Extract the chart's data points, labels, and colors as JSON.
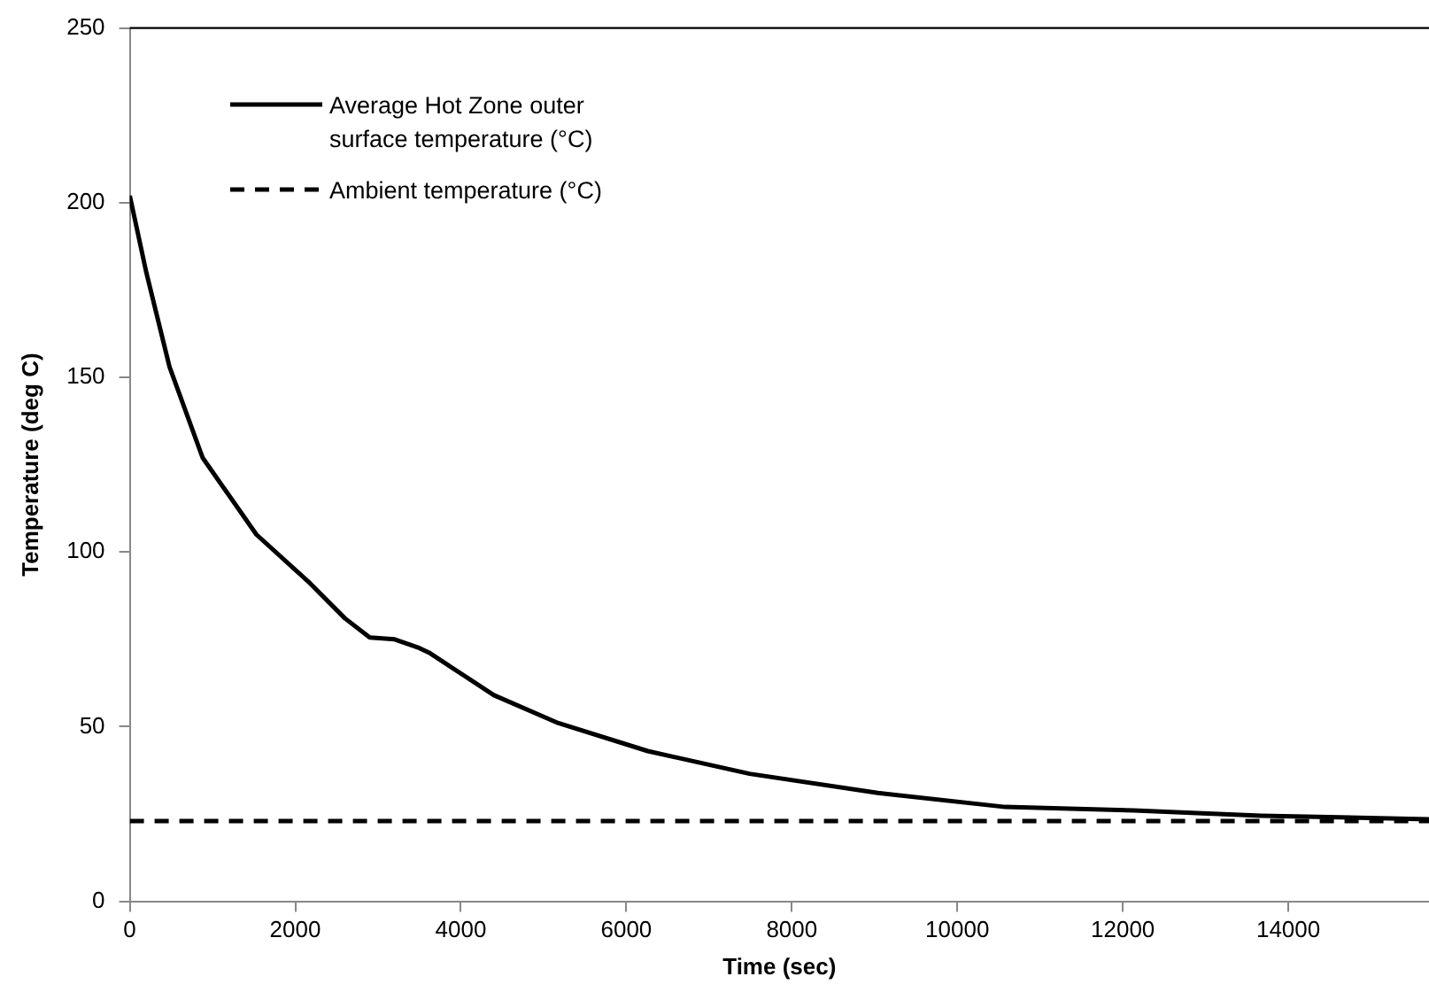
{
  "chart_data": {
    "type": "line",
    "xlabel": "Time (sec)",
    "ylabel": "Temperature (deg C)",
    "xlim": [
      0,
      15700
    ],
    "ylim": [
      0,
      250
    ],
    "xticks": [
      0,
      2000,
      4000,
      6000,
      8000,
      10000,
      12000,
      14000
    ],
    "yticks": [
      0,
      50,
      100,
      150,
      200,
      250
    ],
    "grid": false,
    "legend": "top left",
    "marker": "none",
    "series": [
      {
        "name": "Average Hot Zone outer surface temperature (°C)",
        "color": "#000000",
        "line_style": "solid",
        "x": [
          0,
          200,
          480,
          880,
          1530,
          2180,
          2600,
          2900,
          3200,
          3500,
          3630,
          4400,
          5180,
          6260,
          7490,
          9040,
          10580,
          12130,
          13670,
          15700
        ],
        "values": [
          202,
          180,
          153,
          127,
          105,
          91,
          81,
          75.5,
          75,
          72.5,
          71,
          59,
          51,
          43,
          36.5,
          31,
          27,
          26,
          24.5,
          23.5
        ]
      },
      {
        "name": "Ambient temperature (°C)",
        "color": "#000000",
        "line_style": "dashed",
        "x": [
          0,
          15700
        ],
        "values": [
          23,
          23
        ]
      }
    ]
  }
}
